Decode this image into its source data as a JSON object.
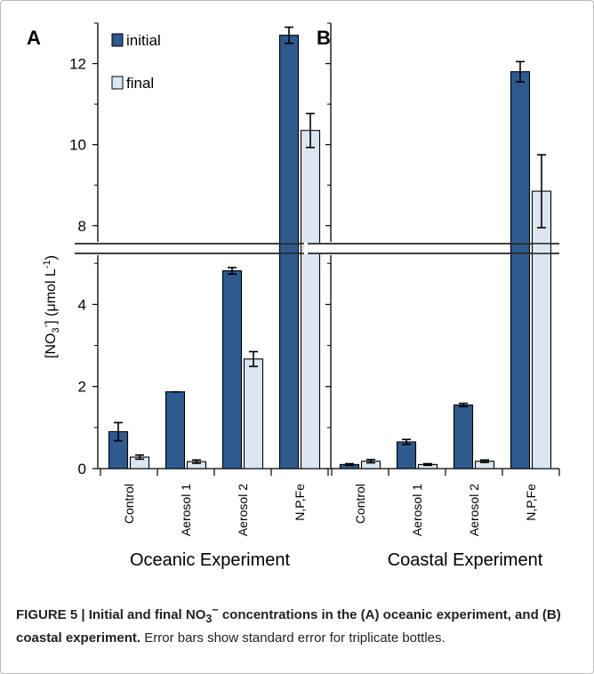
{
  "chart_data": [
    {
      "type": "bar",
      "panel_label": "A",
      "title": "Oceanic Experiment",
      "categories": [
        "Control",
        "Aerosol 1",
        "Aerosol 2",
        "N,P,Fe"
      ],
      "ylabel_parts": [
        "[NO",
        "3",
        "-",
        "] (μmol L",
        "-1",
        ")"
      ],
      "y_lower_range": [
        0,
        5.2
      ],
      "y_upper_range": [
        7.6,
        13
      ],
      "y_ticks": [
        0,
        2,
        4,
        8,
        10,
        12
      ],
      "axis_break": "between 5.2 and 7.6",
      "legend_position": "top-left",
      "series": [
        {
          "name": "initial",
          "color": "#2e5a8e",
          "values": [
            0.9,
            1.87,
            4.82,
            12.7
          ],
          "errors": [
            0.22,
            0.0,
            0.08,
            0.2
          ]
        },
        {
          "name": "final",
          "color": "#dbe6f2",
          "values": [
            0.28,
            0.17,
            2.67,
            10.35
          ],
          "errors": [
            0.05,
            0.04,
            0.18,
            0.42
          ]
        }
      ]
    },
    {
      "type": "bar",
      "panel_label": "B",
      "title": "Coastal Experiment",
      "categories": [
        "Control",
        "Aerosol 1",
        "Aerosol 2",
        "N,P,Fe"
      ],
      "y_lower_range": [
        0,
        5.2
      ],
      "y_upper_range": [
        7.6,
        13
      ],
      "axis_break": "between 5.2 and 7.6",
      "series": [
        {
          "name": "initial",
          "color": "#2e5a8e",
          "values": [
            0.1,
            0.65,
            1.55,
            11.8
          ],
          "errors": [
            0.02,
            0.06,
            0.04,
            0.25
          ]
        },
        {
          "name": "final",
          "color": "#dbe6f2",
          "values": [
            0.18,
            0.1,
            0.18,
            8.85
          ],
          "errors": [
            0.04,
            0.02,
            0.03,
            0.9
          ]
        }
      ]
    }
  ],
  "caption": {
    "label_prefix": "FIGURE 5 | Initial and final NO",
    "label_sub": "3",
    "label_sup": "−",
    "label_rest": " concentrations in the (A) oceanic experiment, and (B) coastal experiment.",
    "text": " Error bars show standard error for triplicate bottles."
  }
}
